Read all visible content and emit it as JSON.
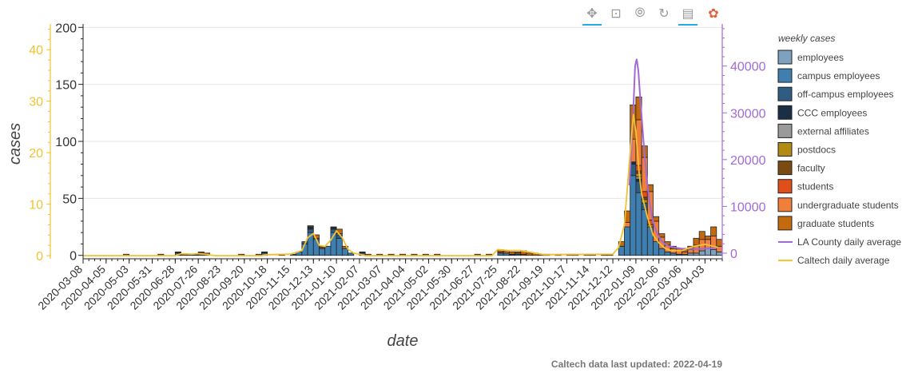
{
  "toolbar": {
    "pan_label": "✥",
    "box_zoom_label": "⊡",
    "wheel_zoom_label": "⦾",
    "reset_label": "↻",
    "hover_label": "▤",
    "logo_label": "✿"
  },
  "footer": {
    "updated_text": "Caltech data last updated: 2022-04-19"
  },
  "colors": {
    "employees": "#7ea2be",
    "campus_employees": "#3f7fb0",
    "off_campus_employees": "#2f5c82",
    "ccc_employees": "#1a2f45",
    "external_affiliates": "#9a9a9a",
    "postdocs": "#b38a12",
    "faculty": "#7a4a10",
    "students": "#e04e1a",
    "undergraduate_students": "#f07f3c",
    "graduate_students": "#c36a0e",
    "la_county": "#a36ad6",
    "caltech_avg": "#f2c232",
    "left_axis": "#f2c232",
    "right_axis": "#a36ad6"
  },
  "chart_data": {
    "type": "bar",
    "stacked": true,
    "xlabel": "date",
    "ylabel": "cases",
    "x_range": [
      "2020-03-08",
      "2022-04-24"
    ],
    "ylim": [
      -3,
      203
    ],
    "y_ticks": [
      0,
      50,
      100,
      150,
      200
    ],
    "secondary_y_left": {
      "ylim": [
        -0.6,
        45
      ],
      "ticks": [
        0,
        10,
        20,
        30,
        40
      ]
    },
    "secondary_y_right": {
      "ylim": [
        -1200,
        49000
      ],
      "ticks": [
        0,
        10000,
        20000,
        30000,
        40000
      ]
    },
    "x_ticks": [
      "2020-03-08",
      "2020-04-05",
      "2020-05-03",
      "2020-05-31",
      "2020-06-28",
      "2020-07-26",
      "2020-08-23",
      "2020-09-20",
      "2020-10-18",
      "2020-11-15",
      "2020-12-13",
      "2021-01-10",
      "2021-02-07",
      "2021-03-07",
      "2021-04-04",
      "2021-05-02",
      "2021-05-30",
      "2021-06-27",
      "2021-07-25",
      "2021-08-22",
      "2021-09-19",
      "2021-10-17",
      "2021-11-14",
      "2021-12-12",
      "2022-01-09",
      "2022-02-06",
      "2022-03-06",
      "2022-04-03"
    ],
    "legend_title": "weekly cases",
    "legend_position": "right",
    "series": [
      {
        "key": "employees",
        "name": "employees",
        "kind": "bar",
        "weeks": [
          "2022-03-06",
          "2022-03-13",
          "2022-03-20",
          "2022-03-27",
          "2022-04-03",
          "2022-04-10",
          "2022-04-17"
        ],
        "values": [
          1,
          2,
          2,
          4,
          6,
          5,
          3
        ]
      },
      {
        "key": "campus_employees",
        "name": "campus employees",
        "kind": "bar",
        "weeks": [
          "2020-06-28",
          "2020-07-12",
          "2020-07-26",
          "2020-10-11",
          "2020-11-15",
          "2020-11-22",
          "2020-11-29",
          "2020-12-06",
          "2020-12-13",
          "2020-12-20",
          "2020-12-27",
          "2021-01-03",
          "2021-01-10",
          "2021-01-17",
          "2021-01-24",
          "2021-02-07",
          "2021-07-25",
          "2021-08-01",
          "2021-08-15",
          "2021-12-19",
          "2021-12-26",
          "2022-01-02",
          "2022-01-09",
          "2022-01-16",
          "2022-01-23",
          "2022-01-30",
          "2022-02-06",
          "2022-02-13",
          "2022-02-20",
          "2022-02-27"
        ],
        "values": [
          2,
          1,
          1,
          2,
          1,
          3,
          10,
          20,
          14,
          6,
          8,
          20,
          15,
          6,
          2,
          2,
          2,
          2,
          1,
          8,
          25,
          70,
          55,
          40,
          25,
          12,
          6,
          3,
          2,
          1
        ]
      },
      {
        "key": "off_campus_employees",
        "name": "off-campus employees",
        "kind": "bar",
        "weeks": [
          "2020-11-29",
          "2020-12-06",
          "2021-01-03",
          "2021-01-10",
          "2022-01-02",
          "2022-01-09",
          "2022-01-16"
        ],
        "values": [
          2,
          3,
          3,
          3,
          10,
          10,
          6
        ]
      },
      {
        "key": "ccc_employees",
        "name": "CCC employees",
        "kind": "bar",
        "weeks": [
          "2020-06-28",
          "2020-07-19",
          "2020-10-11",
          "2020-12-06",
          "2021-01-03",
          "2021-02-07",
          "2021-08-08",
          "2022-01-02",
          "2022-01-09"
        ],
        "values": [
          1,
          1,
          1,
          2,
          2,
          1,
          1,
          2,
          2
        ]
      },
      {
        "key": "external_affiliates",
        "name": "external affiliates",
        "kind": "bar",
        "weeks": [
          "2020-12-13",
          "2021-01-10",
          "2022-01-09"
        ],
        "values": [
          1,
          1,
          2
        ]
      },
      {
        "key": "postdocs",
        "name": "postdocs",
        "kind": "bar",
        "weeks": [
          "2021-08-15",
          "2022-01-09",
          "2022-01-16",
          "2022-01-23"
        ],
        "values": [
          1,
          3,
          3,
          2
        ]
      },
      {
        "key": "faculty",
        "name": "faculty",
        "kind": "bar",
        "weeks": [
          "2020-12-06",
          "2022-01-09",
          "2022-01-16"
        ],
        "values": [
          1,
          2,
          2
        ]
      },
      {
        "key": "students",
        "name": "students",
        "kind": "bar",
        "weeks": [
          "2020-07-26",
          "2020-12-20",
          "2021-07-25",
          "2021-08-22",
          "2022-01-09",
          "2022-01-16",
          "2022-01-23"
        ],
        "values": [
          1,
          1,
          1,
          1,
          5,
          5,
          4
        ]
      },
      {
        "key": "undergraduate_students",
        "name": "undergraduate students",
        "kind": "bar",
        "weeks": [
          "2021-09-19",
          "2021-10-17",
          "2021-11-14",
          "2021-12-26",
          "2022-01-02",
          "2022-01-09",
          "2022-01-16",
          "2022-01-23",
          "2022-01-30",
          "2022-02-06",
          "2022-02-13",
          "2022-02-20",
          "2022-02-27",
          "2022-03-06",
          "2022-03-13",
          "2022-03-20",
          "2022-03-27",
          "2022-04-03",
          "2022-04-10",
          "2022-04-17"
        ],
        "values": [
          1,
          1,
          1,
          4,
          20,
          40,
          30,
          25,
          18,
          10,
          6,
          4,
          3,
          2,
          3,
          7,
          10,
          8,
          12,
          5
        ]
      },
      {
        "key": "graduate_students",
        "name": "graduate students",
        "kind": "bar",
        "weeks": [
          "2020-04-26",
          "2020-06-07",
          "2020-07-05",
          "2020-07-26",
          "2020-08-02",
          "2020-09-13",
          "2020-10-04",
          "2020-11-01",
          "2020-12-13",
          "2020-12-20",
          "2021-01-10",
          "2021-01-17",
          "2021-02-14",
          "2021-02-28",
          "2021-03-14",
          "2021-03-28",
          "2021-04-11",
          "2021-04-25",
          "2021-05-09",
          "2021-06-27",
          "2021-07-11",
          "2021-07-25",
          "2021-08-01",
          "2021-08-08",
          "2021-08-15",
          "2021-08-22",
          "2021-08-29",
          "2021-09-05",
          "2021-09-12",
          "2021-10-03",
          "2021-10-24",
          "2021-11-07",
          "2021-11-28",
          "2021-12-05",
          "2021-12-19",
          "2021-12-26",
          "2022-01-02",
          "2022-01-09",
          "2022-01-16",
          "2022-01-23",
          "2022-01-30",
          "2022-02-06",
          "2022-02-13",
          "2022-02-20",
          "2022-02-27",
          "2022-03-06",
          "2022-03-13",
          "2022-03-20",
          "2022-03-27",
          "2022-04-03",
          "2022-04-10",
          "2022-04-17"
        ],
        "values": [
          1,
          1,
          1,
          1,
          2,
          1,
          1,
          1,
          3,
          1,
          4,
          2,
          1,
          1,
          1,
          1,
          1,
          1,
          1,
          1,
          1,
          2,
          2,
          2,
          1,
          3,
          2,
          2,
          1,
          1,
          1,
          1,
          1,
          1,
          4,
          10,
          30,
          20,
          10,
          6,
          4,
          3,
          3,
          2,
          2,
          2,
          3,
          6,
          7,
          3,
          8,
          6
        ]
      },
      {
        "key": "la_county",
        "name": "LA County daily average",
        "kind": "line",
        "axis": "right",
        "x": [
          "2022-01-01",
          "2022-01-05",
          "2022-01-08",
          "2022-01-10",
          "2022-01-12",
          "2022-01-14",
          "2022-01-17",
          "2022-01-20",
          "2022-01-23",
          "2022-01-26",
          "2022-01-29",
          "2022-02-01",
          "2022-02-05",
          "2022-02-09",
          "2022-02-13",
          "2022-02-18",
          "2022-02-25",
          "2022-03-05",
          "2022-03-15",
          "2022-03-25",
          "2022-04-05",
          "2022-04-19"
        ],
        "y": [
          14500,
          27000,
          40000,
          41500,
          39000,
          34000,
          27000,
          20000,
          14500,
          10500,
          7500,
          5500,
          3800,
          2700,
          2000,
          1500,
          1200,
          1000,
          900,
          900,
          1000,
          1200
        ]
      },
      {
        "key": "caltech_avg",
        "name": "Caltech daily average",
        "kind": "line",
        "axis": "left",
        "x": [
          "2020-03-08",
          "2020-06-28",
          "2020-07-05",
          "2020-07-19",
          "2020-07-26",
          "2020-08-02",
          "2020-08-16",
          "2020-10-11",
          "2020-10-18",
          "2020-11-15",
          "2020-11-29",
          "2020-12-06",
          "2020-12-13",
          "2020-12-20",
          "2020-12-27",
          "2021-01-03",
          "2021-01-10",
          "2021-01-17",
          "2021-01-24",
          "2021-01-31",
          "2021-02-07",
          "2021-02-14",
          "2021-07-18",
          "2021-07-25",
          "2021-08-08",
          "2021-08-22",
          "2021-09-05",
          "2021-09-19",
          "2021-12-12",
          "2021-12-19",
          "2021-12-26",
          "2022-01-02",
          "2022-01-06",
          "2022-01-09",
          "2022-01-13",
          "2022-01-16",
          "2022-01-23",
          "2022-01-30",
          "2022-02-06",
          "2022-02-13",
          "2022-02-20",
          "2022-03-06",
          "2022-03-20",
          "2022-04-03",
          "2022-04-19"
        ],
        "y": [
          0,
          0,
          0.4,
          0.3,
          0.4,
          0.3,
          0,
          0,
          0.2,
          0.3,
          1.0,
          3.5,
          4.3,
          2.0,
          1.8,
          3.0,
          4.8,
          3.5,
          1.3,
          0.5,
          0.3,
          0,
          0,
          1.2,
          1.0,
          1.0,
          0.6,
          0.2,
          0.3,
          1.6,
          6.0,
          20,
          27.5,
          24,
          16,
          12,
          7.5,
          4,
          2.5,
          1.5,
          1.0,
          1.0,
          1.8,
          2.2,
          1.6
        ]
      }
    ]
  }
}
